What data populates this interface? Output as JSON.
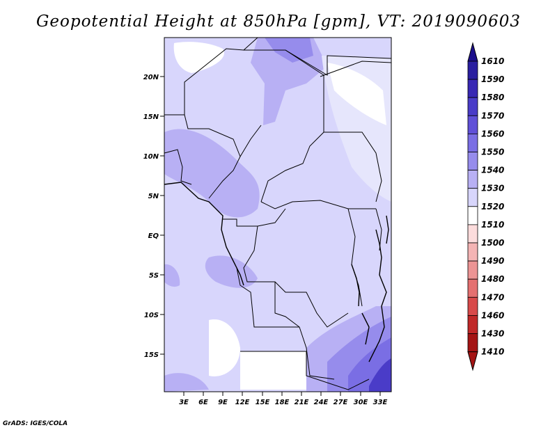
{
  "title": "Geopotential Height at 850hPa [gpm], VT: 2019090603",
  "credit": "GrADS: IGES/COLA",
  "map": {
    "lat_labels": [
      "20N",
      "15N",
      "10N",
      "5N",
      "EQ",
      "5S",
      "10S",
      "15S"
    ],
    "lon_labels": [
      "3E",
      "6E",
      "9E",
      "12E",
      "15E",
      "18E",
      "21E",
      "24E",
      "27E",
      "30E",
      "33E"
    ]
  },
  "colorbar": {
    "levels": [
      "1610",
      "1590",
      "1580",
      "1570",
      "1560",
      "1550",
      "1540",
      "1530",
      "1520",
      "1510",
      "1500",
      "1490",
      "1480",
      "1470",
      "1460",
      "1430",
      "1410"
    ],
    "colors": [
      "#1c0f8c",
      "#2a1ea0",
      "#3828b4",
      "#4a3cc8",
      "#6050d8",
      "#7a6ee4",
      "#968cec",
      "#b8b0f4",
      "#d8d6fc",
      "#ffffff",
      "#fcdcdc",
      "#f4b4b4",
      "#ec9494",
      "#e47070",
      "#d84a4a",
      "#c02828",
      "#a41414"
    ]
  }
}
